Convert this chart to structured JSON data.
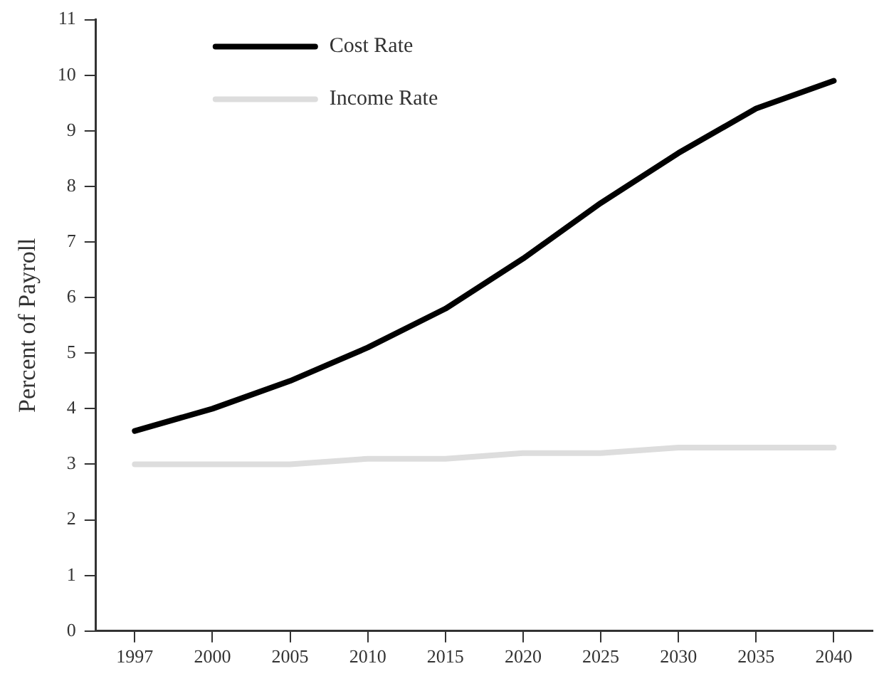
{
  "chart_data": {
    "type": "line",
    "ylabel": "Percent of Payroll",
    "categories": [
      "1997",
      "2000",
      "2005",
      "2010",
      "2015",
      "2020",
      "2025",
      "2030",
      "2035",
      "2040"
    ],
    "series": [
      {
        "name": "Cost Rate",
        "color": "#000000",
        "values": [
          3.6,
          4.0,
          4.5,
          5.1,
          5.8,
          6.7,
          7.7,
          8.6,
          9.4,
          9.9
        ]
      },
      {
        "name": "Income Rate",
        "color": "#dddddd",
        "values": [
          3.0,
          3.0,
          3.0,
          3.1,
          3.1,
          3.2,
          3.2,
          3.3,
          3.3,
          3.3
        ]
      }
    ],
    "ylim": [
      0,
      11
    ],
    "yticks": [
      0,
      1,
      2,
      3,
      4,
      5,
      6,
      7,
      8,
      9,
      10,
      11
    ],
    "grid": false,
    "legend": "top left",
    "marker": "none",
    "line_style": "solid"
  }
}
